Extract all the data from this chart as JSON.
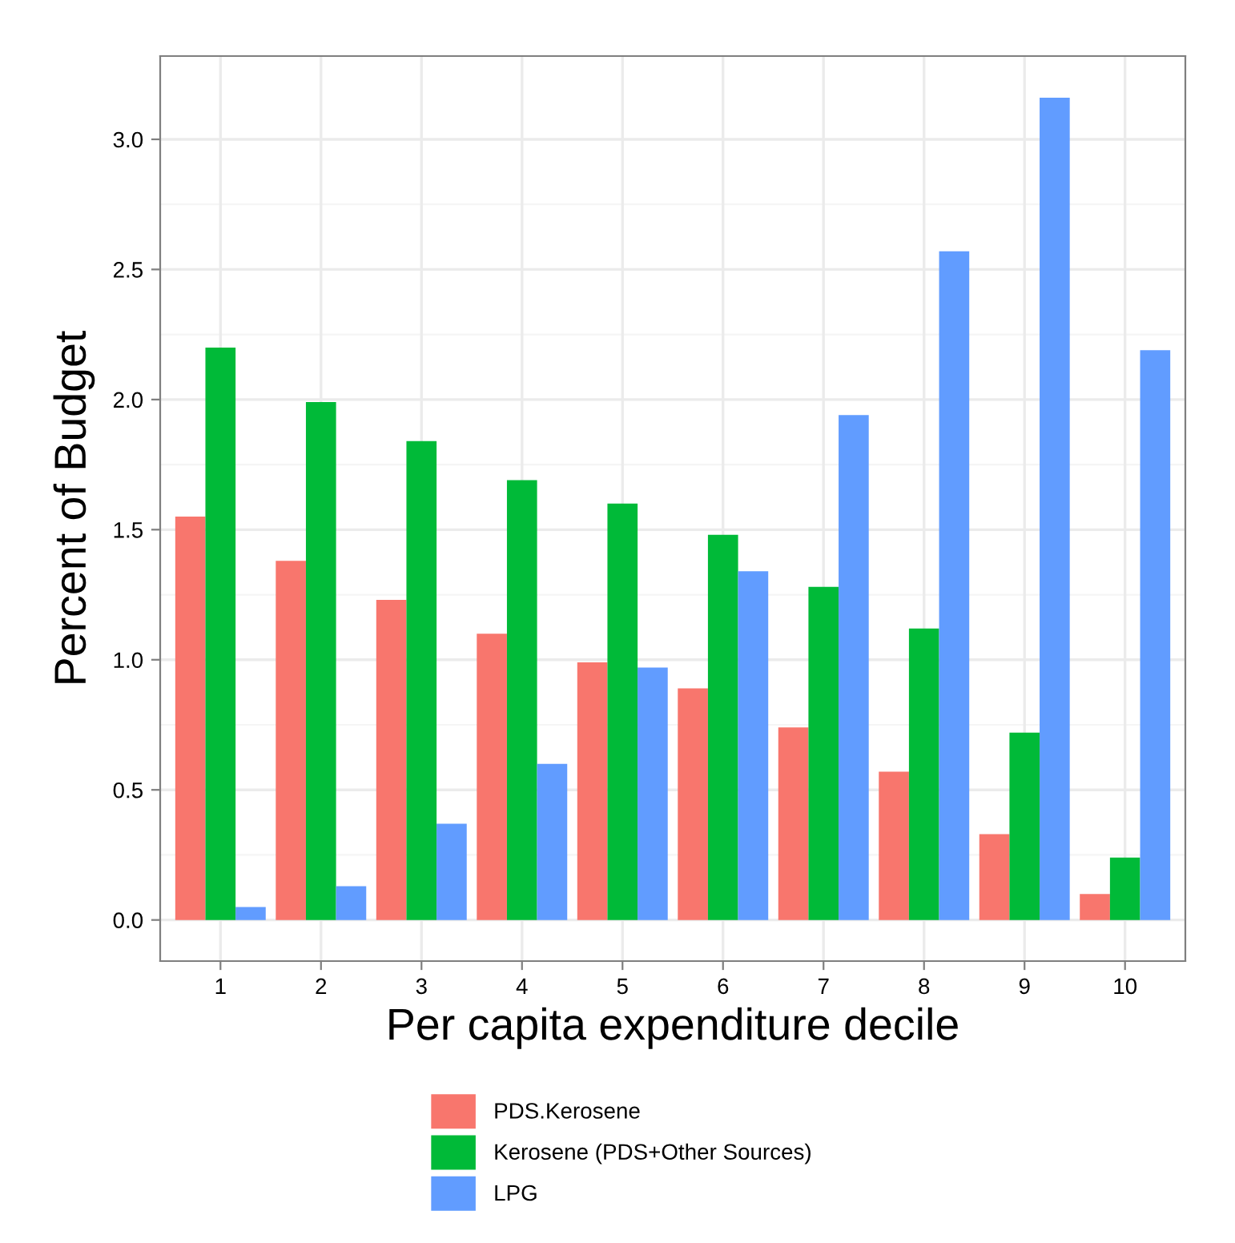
{
  "chart_data": {
    "type": "bar",
    "xlabel": "Per capita expenditure decile",
    "ylabel": "Percent of Budget",
    "categories": [
      "1",
      "2",
      "3",
      "4",
      "5",
      "6",
      "7",
      "8",
      "9",
      "10"
    ],
    "series": [
      {
        "name": "PDS.Kerosene",
        "color": "#f8766d",
        "values": [
          1.55,
          1.38,
          1.23,
          1.1,
          0.99,
          0.89,
          0.74,
          0.57,
          0.33,
          0.1
        ]
      },
      {
        "name": "Kerosene (PDS+Other Sources)",
        "color": "#00ba38",
        "values": [
          2.2,
          1.99,
          1.84,
          1.69,
          1.6,
          1.48,
          1.28,
          1.12,
          0.72,
          0.24
        ]
      },
      {
        "name": "LPG",
        "color": "#619cff",
        "values": [
          0.05,
          0.13,
          0.37,
          0.6,
          0.97,
          1.34,
          1.94,
          2.57,
          3.16,
          2.19
        ]
      }
    ],
    "ylim": [
      -0.158,
      3.32
    ],
    "yticks": [
      {
        "value": 0,
        "label": "0.0"
      },
      0.5,
      {
        "value": 1,
        "label": "1.0"
      },
      1.5,
      {
        "value": 2,
        "label": "2.0"
      },
      2.5,
      {
        "value": 3,
        "label": "3.0"
      }
    ],
    "grid": true,
    "legend": "bottom"
  }
}
